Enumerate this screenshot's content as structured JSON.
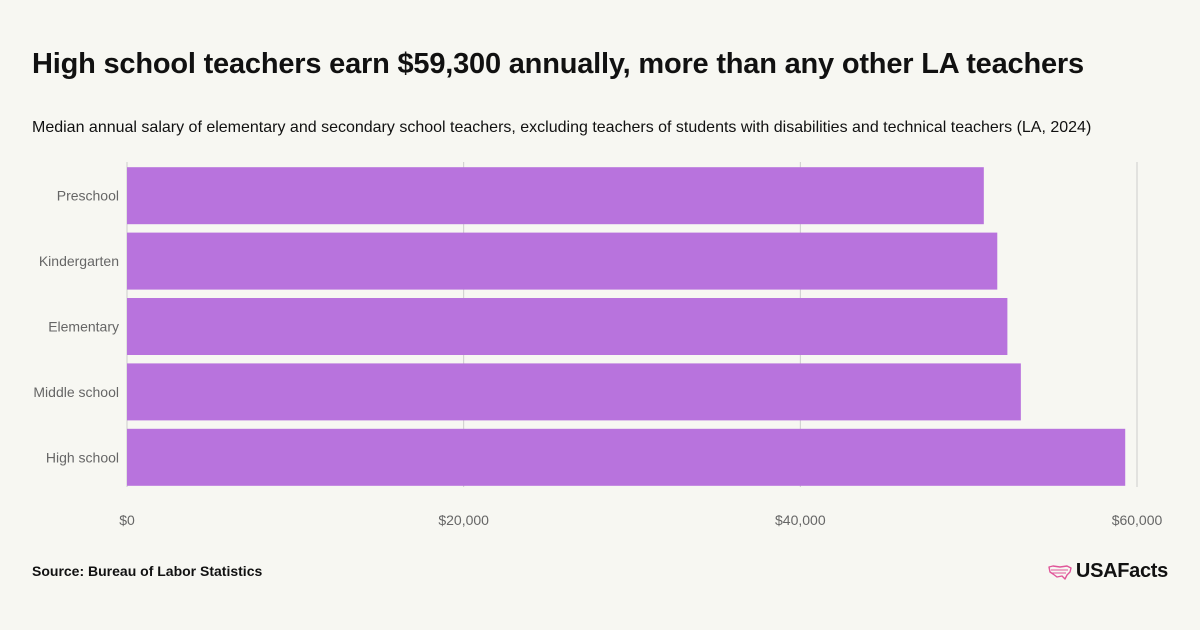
{
  "title": "High school teachers earn $59,300 annually, more than any other LA teachers",
  "subtitle": "Median annual salary of elementary and secondary school teachers, excluding teachers of students with disabilities and technical teachers (LA, 2024)",
  "source": "Source: Bureau of Labor Statistics",
  "brand": {
    "name": "USAFacts",
    "icon": "usa-map-icon"
  },
  "colors": {
    "bar": "#b873dd",
    "axis": "#cccccc",
    "background": "#f7f7f2"
  },
  "chart_data": {
    "type": "bar",
    "orientation": "horizontal",
    "categories": [
      "Preschool",
      "Kindergarten",
      "Elementary",
      "Middle school",
      "High school"
    ],
    "values": [
      50900,
      51700,
      52300,
      53100,
      59300
    ],
    "xlim": [
      0,
      60000
    ],
    "xticks": [
      0,
      20000,
      40000,
      60000
    ],
    "xtick_labels": [
      "$0",
      "$20,000",
      "$40,000",
      "$60,000"
    ],
    "grid": true,
    "legend": "none"
  }
}
